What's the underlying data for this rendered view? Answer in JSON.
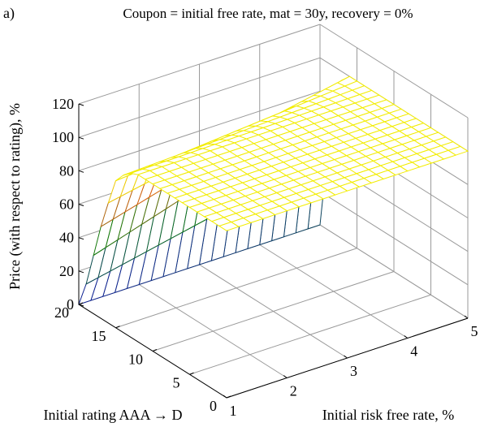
{
  "panel_label": "a)",
  "title": "Coupon = initial free rate, mat = 30y, recovery = 0%",
  "colors": {
    "grid": "#9a9a9a",
    "box": "#000000",
    "surface_bottom": "#1010b0",
    "surface_mid": "#0a7a0a",
    "surface_upper": "#e06010",
    "surface_top": "#f2ec00"
  },
  "chart_data": {
    "type": "surface",
    "title": "Coupon = initial free rate, mat = 30y, recovery = 0%",
    "xlabel": "Initial risk free rate, %",
    "ylabel": "Initial rating AAA → D",
    "zlabel": "Price (with respect to rating), %",
    "xlim": [
      1,
      5
    ],
    "ylim": [
      0,
      20
    ],
    "zlim": [
      0,
      120
    ],
    "x_ticks": [
      "1",
      "2",
      "3",
      "4",
      "5"
    ],
    "y_ticks": [
      "0",
      "5",
      "10",
      "15",
      "20"
    ],
    "z_ticks": [
      "0",
      "20",
      "40",
      "60",
      "80",
      "100",
      "120"
    ],
    "grid": true,
    "series": [
      {
        "profile_x": [
          1,
          5
        ],
        "rating_levels": [
          0,
          1,
          2,
          3,
          4,
          5,
          6,
          7,
          8,
          9,
          10,
          11,
          12,
          13,
          14,
          15,
          16,
          17,
          18,
          19,
          20
        ],
        "price_at_x1": [
          100,
          100,
          100,
          100,
          100,
          100,
          100,
          100,
          100,
          100,
          100,
          100,
          100,
          98,
          94,
          88,
          72,
          55,
          35,
          15,
          0
        ],
        "price_at_x5": [
          100,
          100,
          100,
          100,
          100,
          100,
          100,
          100,
          100,
          100,
          100,
          100,
          100,
          100,
          100,
          100,
          100,
          95,
          80,
          45,
          0
        ]
      }
    ]
  }
}
